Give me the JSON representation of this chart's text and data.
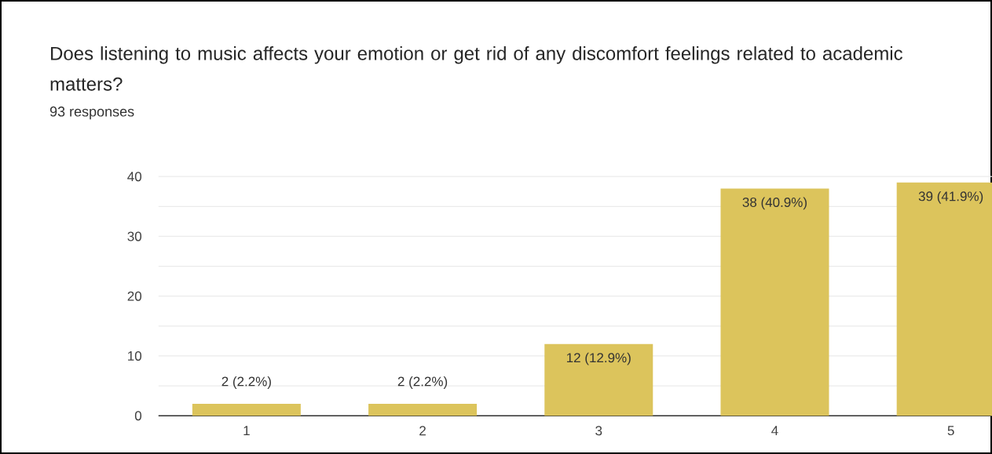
{
  "chart_data": {
    "type": "bar",
    "title": "Does listening to music affects your emotion or get rid of any discomfort feelings related to academic matters?",
    "subtitle": "93 responses",
    "categories": [
      "1",
      "2",
      "3",
      "4",
      "5"
    ],
    "values": [
      2,
      2,
      12,
      38,
      39
    ],
    "value_labels": [
      "2 (2.2%)",
      "2 (2.2%)",
      "12 (12.9%)",
      "38 (40.9%)",
      "39 (41.9%)"
    ],
    "color": "#dcc45c",
    "ylim": [
      0,
      40
    ],
    "yticks": [
      0,
      {
        "value": 5,
        "label": null
      },
      10,
      {
        "value": 15,
        "label": null
      },
      20,
      {
        "value": 25,
        "label": null
      },
      30,
      {
        "value": 35,
        "label": null
      },
      40
    ],
    "grid": "y"
  }
}
